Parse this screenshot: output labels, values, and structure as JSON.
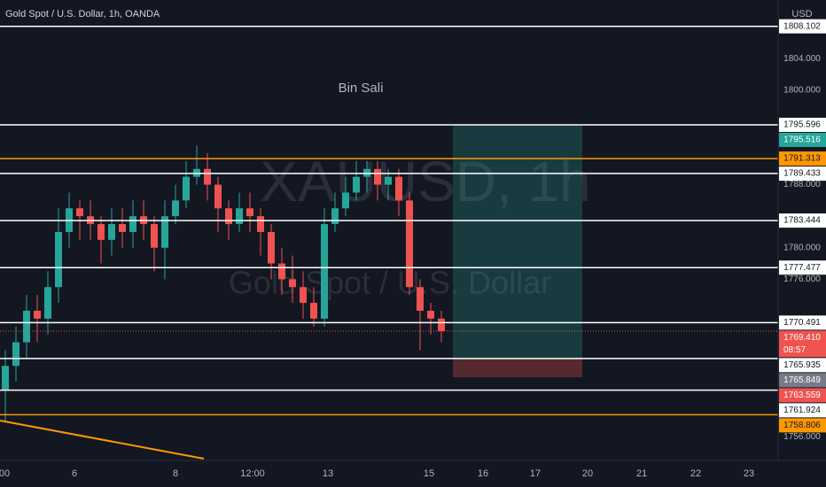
{
  "header": {
    "title": "Gold Spot / U.S. Dollar, 1h, OANDA",
    "currency": "USD"
  },
  "watermark": {
    "symbol": "XAUUSD, 1h",
    "name": "Gold Spot / U.S. Dollar"
  },
  "annotation": "Bin Sali",
  "ylim": [
    1753,
    1811.44
  ],
  "yticks": [
    {
      "value": 1804,
      "label": "1804.000"
    },
    {
      "value": 1800,
      "label": "1800.000"
    },
    {
      "value": 1788,
      "label": "1788.000"
    },
    {
      "value": 1780,
      "label": "1780.000"
    },
    {
      "value": 1776,
      "label": "1776.000"
    },
    {
      "value": 1756,
      "label": "1756.000"
    }
  ],
  "levels": [
    {
      "value": 1808.102,
      "color": "#ffffff"
    },
    {
      "value": 1795.596,
      "color": "#ffffff"
    },
    {
      "value": 1791.313,
      "color": "#ff9800"
    },
    {
      "value": 1789.433,
      "color": "#ffffff"
    },
    {
      "value": 1783.444,
      "color": "#ffffff"
    },
    {
      "value": 1777.477,
      "color": "#ffffff"
    },
    {
      "value": 1770.491,
      "color": "#ffffff"
    },
    {
      "value": 1765.935,
      "color": "#ffffff"
    },
    {
      "value": 1761.924,
      "color": "#ffffff"
    },
    {
      "value": 1758.806,
      "color": "#ff9800"
    }
  ],
  "position": {
    "target": 1795.516,
    "entry": 1765.849,
    "stop": 1763.559
  },
  "last_price": {
    "value": 1769.41,
    "label": "1769.410",
    "countdown": "08:57"
  },
  "time_labels": [
    "00",
    "6",
    "8",
    "12:00",
    "13",
    "15",
    "16",
    "17",
    "20",
    "21",
    "22",
    "23"
  ],
  "candles": [
    [
      1762,
      1767,
      1758,
      1765
    ],
    [
      1765,
      1770,
      1763,
      1768
    ],
    [
      1768,
      1774,
      1766,
      1772
    ],
    [
      1772,
      1774,
      1768,
      1771
    ],
    [
      1771,
      1777,
      1769,
      1775
    ],
    [
      1775,
      1785,
      1773,
      1782
    ],
    [
      1782,
      1787,
      1780,
      1785
    ],
    [
      1785,
      1786,
      1781,
      1784
    ],
    [
      1784,
      1786,
      1781,
      1783
    ],
    [
      1783,
      1784,
      1778,
      1781
    ],
    [
      1781,
      1785,
      1779,
      1783
    ],
    [
      1783,
      1785,
      1780,
      1782
    ],
    [
      1782,
      1786,
      1780,
      1784
    ],
    [
      1784,
      1786,
      1781,
      1783
    ],
    [
      1783,
      1784,
      1777,
      1780
    ],
    [
      1780,
      1786,
      1776,
      1784
    ],
    [
      1784,
      1788,
      1783,
      1786
    ],
    [
      1786,
      1791,
      1785,
      1789
    ],
    [
      1789,
      1793,
      1788,
      1790
    ],
    [
      1790,
      1792,
      1786,
      1788
    ],
    [
      1788,
      1789,
      1782,
      1785
    ],
    [
      1785,
      1786,
      1781,
      1783
    ],
    [
      1783,
      1787,
      1782,
      1785
    ],
    [
      1785,
      1787,
      1782,
      1784
    ],
    [
      1784,
      1785,
      1779,
      1782
    ],
    [
      1782,
      1783,
      1776,
      1778
    ],
    [
      1778,
      1780,
      1774,
      1776
    ],
    [
      1776,
      1779,
      1773,
      1775
    ],
    [
      1775,
      1777,
      1771,
      1773
    ],
    [
      1773,
      1775,
      1770,
      1771
    ],
    [
      1771,
      1785,
      1770,
      1783
    ],
    [
      1783,
      1787,
      1782,
      1785
    ],
    [
      1785,
      1789,
      1784,
      1787
    ],
    [
      1787,
      1791,
      1786,
      1789
    ],
    [
      1789,
      1791,
      1787,
      1790
    ],
    [
      1790,
      1791,
      1786,
      1788
    ],
    [
      1788,
      1790,
      1786,
      1789
    ],
    [
      1789,
      1790,
      1784,
      1786
    ],
    [
      1786,
      1787,
      1774,
      1775
    ],
    [
      1775,
      1776,
      1767,
      1772
    ],
    [
      1772,
      1773,
      1769,
      1771
    ],
    [
      1771,
      1772,
      1768,
      1769.41
    ]
  ]
}
